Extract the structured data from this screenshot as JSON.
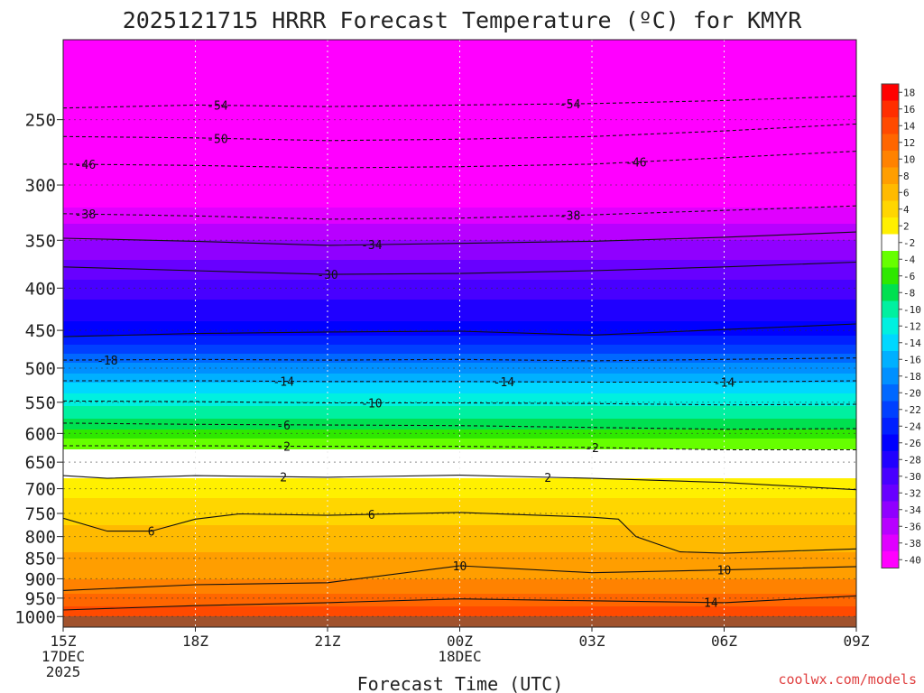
{
  "chart_data": {
    "type": "heatmap",
    "title": "2025121715 HRRR Forecast Temperature (ºC) for KMYR",
    "xlabel": "Forecast Time (UTC)",
    "ylabel": "",
    "credit": "coolwx.com/models",
    "y_scale": "log",
    "y_inverted": true,
    "ylim": [
      1030,
      200
    ],
    "xlim": [
      0,
      18
    ],
    "grid": true,
    "x_ticks": [
      {
        "value": 0,
        "lines": [
          "15Z",
          "17DEC",
          "2025"
        ]
      },
      {
        "value": 3,
        "lines": [
          "18Z"
        ]
      },
      {
        "value": 6,
        "lines": [
          "21Z"
        ]
      },
      {
        "value": 9,
        "lines": [
          "00Z",
          "18DEC"
        ]
      },
      {
        "value": 12,
        "lines": [
          "03Z"
        ]
      },
      {
        "value": 15,
        "lines": [
          "06Z"
        ]
      },
      {
        "value": 18,
        "lines": [
          "09Z"
        ]
      }
    ],
    "y_ticks": [
      250,
      300,
      350,
      400,
      450,
      500,
      550,
      600,
      650,
      700,
      750,
      800,
      850,
      900,
      950,
      1000
    ],
    "colorbar": {
      "levels": [
        18,
        16,
        14,
        12,
        10,
        8,
        6,
        4,
        2,
        -2,
        -4,
        -6,
        -8,
        -10,
        -12,
        -14,
        -16,
        -18,
        -20,
        -22,
        -24,
        -26,
        -28,
        -30,
        -32,
        -34,
        -36,
        -38,
        -40
      ],
      "colors": [
        "#ff0000",
        "#ff2e00",
        "#ff4a00",
        "#ff6600",
        "#ff8200",
        "#ff9e00",
        "#ffba00",
        "#ffd600",
        "#fff000",
        "#ffffff",
        "#66ff00",
        "#2ee800",
        "#00e050",
        "#00f0a0",
        "#00f0e0",
        "#00d8ff",
        "#00b0ff",
        "#0090ff",
        "#0068ff",
        "#0040ff",
        "#0020ff",
        "#0000ff",
        "#2000ff",
        "#4800ff",
        "#6800ff",
        "#9000ff",
        "#b800ff",
        "#e000ff",
        "#ff00ff"
      ]
    },
    "profile": [
      {
        "p": 1015,
        "t": 16
      },
      {
        "p": 980,
        "t": 14.5
      },
      {
        "p": 950,
        "t": 12.5
      },
      {
        "p": 900,
        "t": 10
      },
      {
        "p": 850,
        "t": 8.5
      },
      {
        "p": 800,
        "t": 6.5
      },
      {
        "p": 750,
        "t": 5.5
      },
      {
        "p": 700,
        "t": 3
      },
      {
        "p": 675,
        "t": 1.8
      },
      {
        "p": 650,
        "t": 0
      },
      {
        "p": 620,
        "t": -2.5
      },
      {
        "p": 600,
        "t": -5.5
      },
      {
        "p": 575,
        "t": -8
      },
      {
        "p": 550,
        "t": -10.5
      },
      {
        "p": 520,
        "t": -14
      },
      {
        "p": 500,
        "t": -17
      },
      {
        "p": 480,
        "t": -20
      },
      {
        "p": 450,
        "t": -25
      },
      {
        "p": 420,
        "t": -27.5
      },
      {
        "p": 400,
        "t": -29
      },
      {
        "p": 380,
        "t": -31
      },
      {
        "p": 350,
        "t": -34
      },
      {
        "p": 320,
        "t": -38
      },
      {
        "p": 300,
        "t": -41
      },
      {
        "p": 250,
        "t": -50
      },
      {
        "p": 200,
        "t": -58
      }
    ],
    "contours": [
      {
        "label": "-54",
        "style": "dashed",
        "x": [
          0,
          3,
          6,
          9,
          12,
          15,
          18
        ],
        "p": [
          242,
          240,
          241,
          240,
          239,
          237,
          234
        ],
        "labels_at": [
          3.5,
          11.5
        ]
      },
      {
        "label": "-50",
        "style": "dashed",
        "x": [
          0,
          3,
          6,
          9,
          12,
          15,
          18
        ],
        "p": [
          262,
          263,
          265,
          264,
          262,
          258,
          253
        ],
        "labels_at": [
          3.5
        ]
      },
      {
        "label": "-46",
        "style": "dashed",
        "x": [
          0,
          3,
          6,
          9,
          12,
          15,
          18
        ],
        "p": [
          283,
          284,
          286,
          285,
          283,
          278,
          273
        ],
        "labels_at": [
          0.5,
          13
        ]
      },
      {
        "label": "-38",
        "style": "dashed",
        "x": [
          0,
          3,
          6,
          9,
          12,
          15,
          18
        ],
        "p": [
          325,
          327,
          330,
          329,
          326,
          322,
          318
        ],
        "labels_at": [
          0.5,
          11.5
        ]
      },
      {
        "label": "-34",
        "style": "solid",
        "x": [
          0,
          3,
          6,
          9,
          12,
          15,
          18
        ],
        "p": [
          348,
          351,
          355,
          353,
          351,
          347,
          342
        ],
        "labels_at": [
          7
        ]
      },
      {
        "label": "-30",
        "style": "solid",
        "x": [
          0,
          3,
          6,
          9,
          12,
          15,
          18
        ],
        "p": [
          377,
          381,
          385,
          384,
          381,
          377,
          372
        ],
        "labels_at": [
          6
        ]
      },
      {
        "label": "-26",
        "style": "solid",
        "x": [
          0,
          3,
          6,
          9,
          12,
          15,
          18
        ],
        "p": [
          458,
          454,
          452,
          451,
          456,
          449,
          442
        ],
        "labels_at": []
      },
      {
        "label": "-18",
        "style": "dashed",
        "x": [
          0,
          3,
          6,
          9,
          12,
          15,
          18
        ],
        "p": [
          489,
          488,
          489,
          488,
          490,
          488,
          486
        ],
        "labels_at": [
          1
        ]
      },
      {
        "label": "-14",
        "style": "dashed",
        "x": [
          0,
          3,
          6,
          9,
          12,
          15,
          18
        ],
        "p": [
          518,
          518,
          519,
          519,
          520,
          520,
          518
        ],
        "labels_at": [
          5,
          10,
          15
        ]
      },
      {
        "label": "-10",
        "style": "dashed",
        "x": [
          0,
          3,
          6,
          9,
          12,
          15,
          18
        ],
        "p": [
          548,
          549,
          551,
          551,
          552,
          554,
          553
        ],
        "labels_at": [
          7
        ]
      },
      {
        "label": "-6",
        "style": "dashed",
        "x": [
          0,
          3,
          6,
          9,
          12,
          15,
          18
        ],
        "p": [
          583,
          585,
          586,
          587,
          590,
          593,
          592
        ],
        "labels_at": [
          5
        ]
      },
      {
        "label": "-2",
        "style": "dashed",
        "x": [
          0,
          3,
          6,
          9,
          12,
          15,
          18
        ],
        "p": [
          621,
          621,
          622,
          622,
          624,
          628,
          628
        ],
        "labels_at": [
          5,
          12
        ]
      },
      {
        "label": "2",
        "style": "solid",
        "x": [
          0,
          1,
          3,
          6,
          9,
          12,
          15,
          18
        ],
        "p": [
          675,
          680,
          675,
          678,
          674,
          680,
          688,
          702
        ],
        "labels_at": [
          5,
          11
        ]
      },
      {
        "label": "6",
        "style": "solid",
        "x": [
          0,
          1,
          2,
          3,
          4,
          6,
          9,
          12,
          12.6,
          13,
          14,
          15,
          18
        ],
        "p": [
          760,
          788,
          788,
          762,
          751,
          754,
          748,
          758,
          762,
          800,
          835,
          838,
          828
        ],
        "labels_at": [
          2,
          7
        ]
      },
      {
        "label": "10",
        "style": "solid",
        "x": [
          0,
          3,
          6,
          9,
          12,
          15,
          18
        ],
        "p": [
          930,
          915,
          910,
          868,
          885,
          878,
          870
        ],
        "labels_at": [
          9,
          15
        ]
      },
      {
        "label": "14",
        "style": "solid",
        "x": [
          0,
          3,
          6,
          9,
          12,
          15,
          18
        ],
        "p": [
          982,
          970,
          962,
          952,
          957,
          962,
          944
        ],
        "labels_at": [
          14.7
        ]
      }
    ]
  }
}
